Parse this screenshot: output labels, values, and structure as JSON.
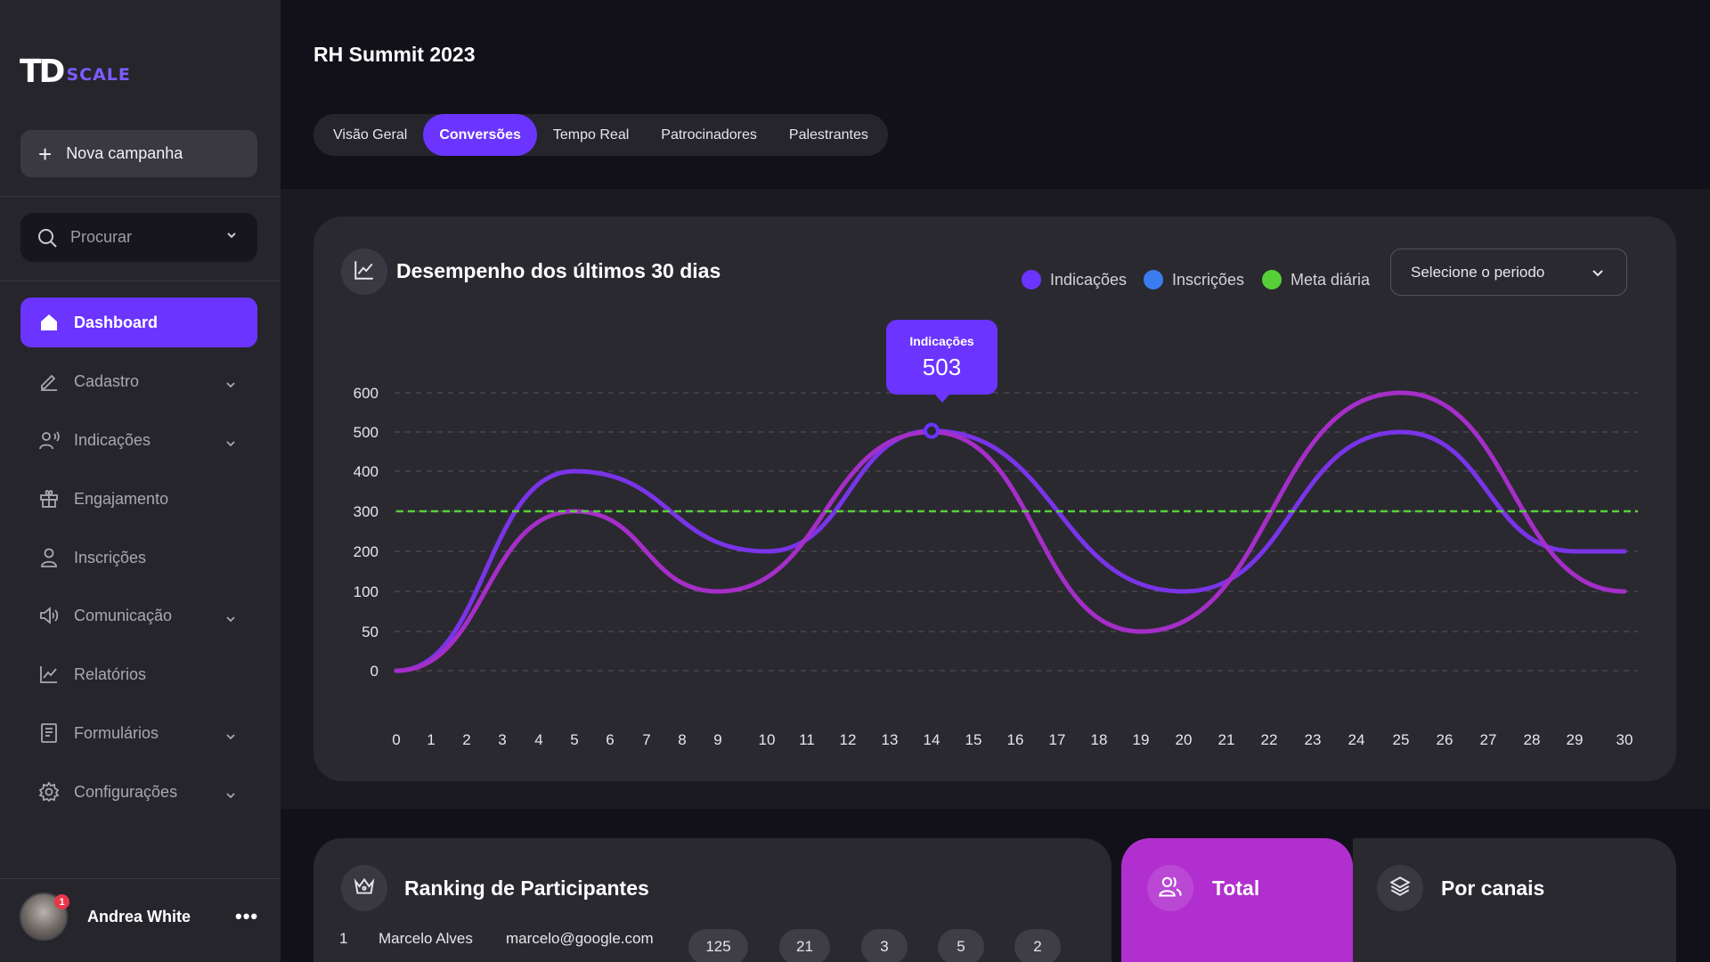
{
  "brand": {
    "logo_td": "TD",
    "logo_scale": "SCALE",
    "accent": "#6b34ff"
  },
  "sidebar": {
    "new_campaign": "Nova campanha",
    "search_placeholder": "Procurar",
    "items": [
      {
        "label": "Dashboard",
        "icon": "home-icon",
        "active": true
      },
      {
        "label": "Cadastro",
        "icon": "pencil-icon",
        "has_submenu": true
      },
      {
        "label": "Indicações",
        "icon": "user-voice-icon",
        "has_submenu": true
      },
      {
        "label": "Engajamento",
        "icon": "gift-icon"
      },
      {
        "label": "Inscrições",
        "icon": "user-icon"
      },
      {
        "label": "Comunicação",
        "icon": "megaphone-icon",
        "has_submenu": true
      },
      {
        "label": "Relatórios",
        "icon": "line-chart-icon"
      },
      {
        "label": "Formulários",
        "icon": "form-icon",
        "has_submenu": true
      },
      {
        "label": "Configurações",
        "icon": "gear-icon",
        "has_submenu": true
      }
    ],
    "user": {
      "name": "Andrea White",
      "notifications": "1",
      "menu": "•••"
    }
  },
  "header": {
    "title": "RH Summit 2023",
    "tabs": [
      {
        "label": "Visão Geral"
      },
      {
        "label": "Conversões",
        "active": true
      },
      {
        "label": "Tempo Real"
      },
      {
        "label": "Patrocinadores"
      },
      {
        "label": "Palestrantes"
      }
    ]
  },
  "performance": {
    "title": "Desempenho dos últimos 30 dias",
    "legend": [
      {
        "label": "Indicações",
        "color": "#6b34ff"
      },
      {
        "label": "Inscrições",
        "color": "#3b7cf0"
      },
      {
        "label": "Meta diária",
        "color": "#57d038"
      }
    ],
    "period_placeholder": "Selecione o periodo",
    "tooltip": {
      "label": "Indicações",
      "value": "503"
    }
  },
  "chart_data": {
    "type": "line",
    "title": "Desempenho dos últimos 30 dias",
    "x": [
      0,
      1,
      2,
      3,
      4,
      5,
      6,
      7,
      8,
      9,
      10,
      11,
      12,
      13,
      14,
      15,
      16,
      17,
      18,
      19,
      20,
      21,
      22,
      23,
      24,
      25,
      26,
      27,
      28,
      29,
      30
    ],
    "y_ticks": [
      0,
      50,
      100,
      200,
      300,
      400,
      500,
      600
    ],
    "x_label_positions_note_removed": true,
    "series": [
      {
        "name": "Indicações",
        "color": "#7a34e8",
        "points": [
          [
            0,
            0
          ],
          [
            5,
            400
          ],
          [
            10,
            200
          ],
          [
            14,
            503
          ],
          [
            20,
            100
          ],
          [
            25,
            500
          ],
          [
            29,
            200
          ],
          [
            30,
            200
          ]
        ]
      },
      {
        "name": "Inscrições",
        "color": "#a52ec8",
        "points": [
          [
            0,
            0
          ],
          [
            5,
            300
          ],
          [
            9,
            100
          ],
          [
            14,
            500
          ],
          [
            19,
            50
          ],
          [
            25,
            600
          ],
          [
            30,
            100
          ]
        ]
      },
      {
        "name": "Meta diária",
        "color": "#57d038",
        "constant": 300
      }
    ],
    "highlight": {
      "series": "Indicações",
      "x": 14,
      "value": 503
    },
    "grid": true
  },
  "ranking": {
    "title": "Ranking de Participantes",
    "rows": [
      {
        "position": "1",
        "name": "Marcelo Alves",
        "email": "marcelo@google.com",
        "values": [
          "125",
          "21",
          "3",
          "5",
          "2"
        ]
      }
    ]
  },
  "summary_tabs": {
    "total": "Total",
    "channels": "Por canais"
  }
}
